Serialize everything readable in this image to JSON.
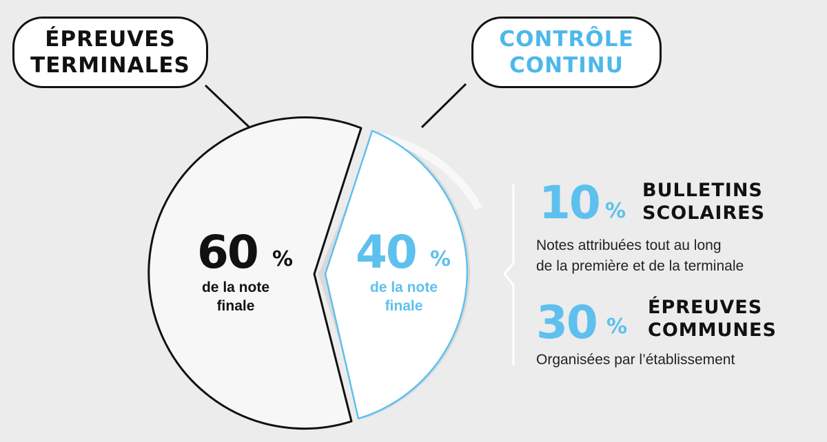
{
  "labels": {
    "epreuves_terminales": "ÉPREUVES\nTERMINALES",
    "controle_continu": "CONTRÔLE\nCONTINU"
  },
  "pie": {
    "terminales": {
      "value": "60",
      "unit": "%",
      "caption": "de la note\nfinale",
      "share": 60
    },
    "continu": {
      "value": "40",
      "unit": "%",
      "caption": "de la note\nfinale",
      "share": 40
    }
  },
  "breakdown": [
    {
      "value": "10",
      "unit": "%",
      "title": "BULLETINS\nSCOLAIRES",
      "description": "Notes attribuées tout au long\nde la première et de la terminale"
    },
    {
      "value": "30",
      "unit": "%",
      "title": "ÉPREUVES\nCOMMUNES",
      "description": "Organisées par l’établissement"
    }
  ],
  "colors": {
    "dark": "#111111",
    "blue": "#5ec0ee",
    "background": "#ececec",
    "slice_fill": "#ffffff",
    "shadow": "#d9d9d9"
  }
}
